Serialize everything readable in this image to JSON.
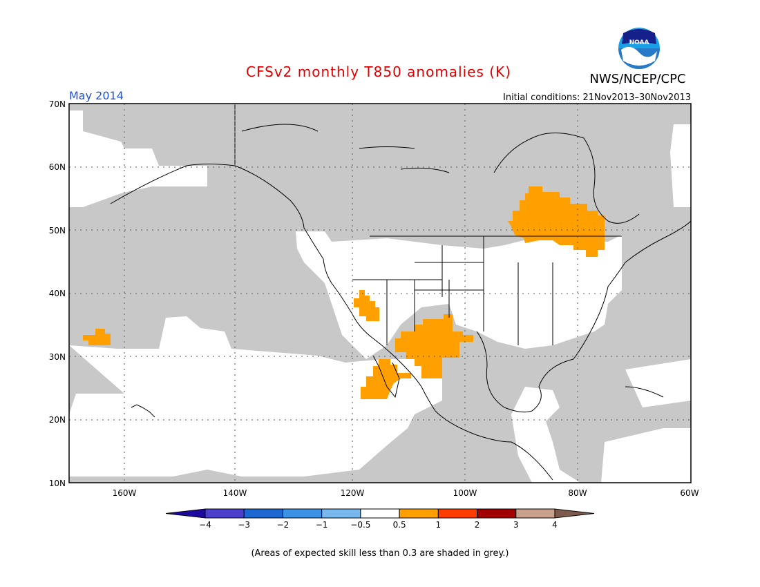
{
  "title": "CFSv2 monthly T850 anomalies (K)",
  "agency": "NWS/NCEP/CPC",
  "logo_text": "NOAA",
  "month": "May 2014",
  "initial_conditions": "Initial conditions: 21Nov2013–30Nov2013",
  "lat_labels": [
    "70N",
    "60N",
    "50N",
    "40N",
    "30N",
    "20N",
    "10N"
  ],
  "lon_labels": [
    "160W",
    "140W",
    "120W",
    "100W",
    "80W",
    "60W"
  ],
  "colorbar": {
    "labels": [
      "−4",
      "−3",
      "−2",
      "−1",
      "−0.5",
      "0.5",
      "1",
      "2",
      "3",
      "4"
    ],
    "colors": [
      "#1c0aa0",
      "#4b3fcc",
      "#1e68d2",
      "#3c93e6",
      "#78b8ee",
      "#ffffff",
      "#ffa000",
      "#ff3c00",
      "#a00000",
      "#c8a08c",
      "#7d5a4b"
    ]
  },
  "footnote": "(Areas of expected skill less than 0.3 are shaded in grey.)",
  "colors": {
    "title": "#e00000",
    "month": "#1e50dc",
    "grey_mask": "#c8c8c8",
    "positive_anomaly": "#ffa000"
  }
}
